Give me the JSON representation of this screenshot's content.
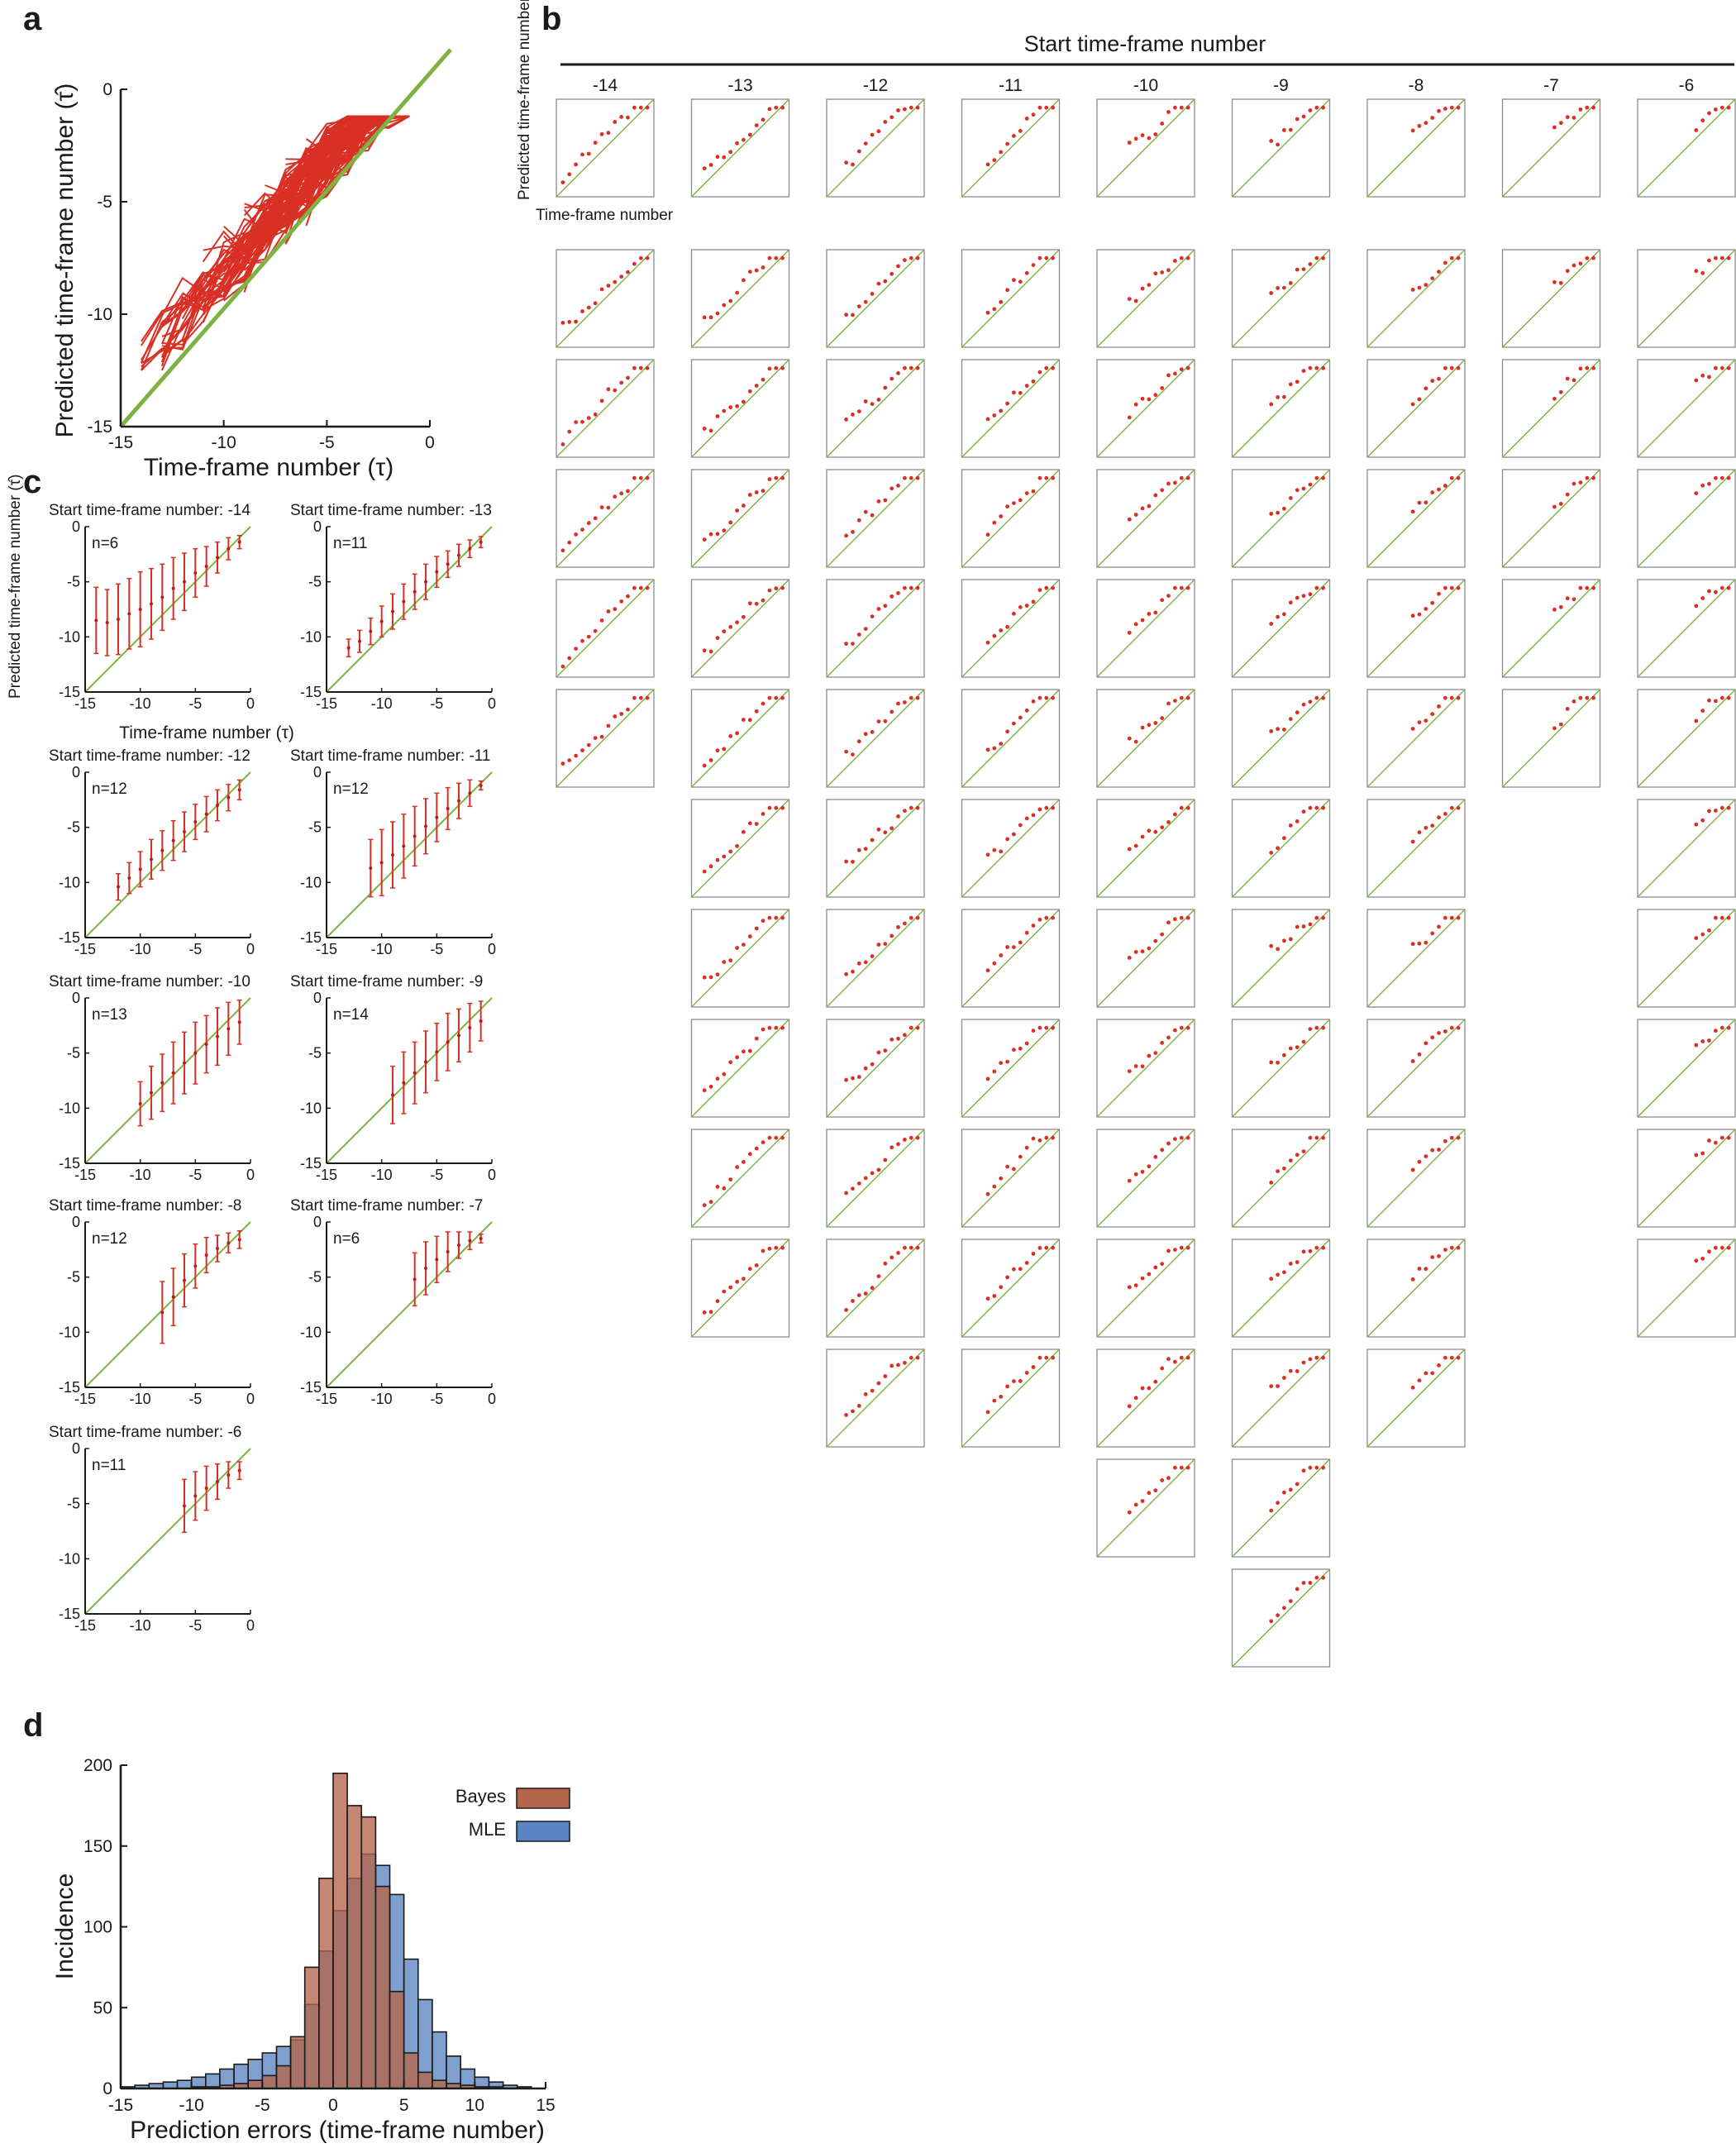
{
  "panel_labels": {
    "a": "a",
    "b": "b",
    "c": "c",
    "d": "d"
  },
  "chart_data": [
    {
      "panel": "a",
      "type": "line",
      "xlabel": "Time-frame number (τ)",
      "ylabel": "Predicted time-frame number (τ̂)",
      "xlim": [
        -15,
        0
      ],
      "ylim": [
        -15,
        0
      ],
      "xticks": [
        "-15",
        "-10",
        "-5",
        "0"
      ],
      "yticks": [
        "-15",
        "-10",
        "-5",
        "0"
      ],
      "identity_line": true,
      "trajectory_count": 100,
      "colors": {
        "trajectories": "#d93025",
        "identity": "#7cb342"
      }
    },
    {
      "panel": "b",
      "type": "scatter",
      "title": "Start time-frame number",
      "columns": [
        "-14",
        "-13",
        "-12",
        "-11",
        "-10",
        "-9",
        "-8",
        "-7",
        "-6"
      ],
      "rows_per_column": [
        6,
        11,
        12,
        12,
        13,
        14,
        12,
        6,
        11
      ],
      "ylabel": "Predicted time-frame number",
      "xlabel": "Time-frame number",
      "xlim": [
        -15,
        0
      ],
      "ylim": [
        -15,
        0
      ],
      "identity_line": true,
      "colors": {
        "points": "#d93025",
        "identity": "#7cb342",
        "frame": "#8c8c8c"
      }
    },
    {
      "panel": "c",
      "type": "scatter",
      "title_prefix": "Start time-frame number: ",
      "ylabel": "Predicted time-frame number (τ̂)",
      "xlabel": "Time-frame number (τ)",
      "xlim": [
        -15,
        0
      ],
      "ylim": [
        -15,
        0
      ],
      "xticks": [
        "-15",
        "-10",
        "-5",
        "0"
      ],
      "yticks": [
        "-15",
        "-10",
        "-5",
        "0"
      ],
      "subplots": [
        {
          "start": "-14",
          "n_label": "n=6",
          "x": [
            -14,
            -13,
            -12,
            -11,
            -10,
            -9,
            -8,
            -7,
            -6,
            -5,
            -4,
            -3,
            -2,
            -1
          ],
          "mean": [
            -8.5,
            -8.7,
            -8.4,
            -7.9,
            -7.5,
            -7.0,
            -6.4,
            -5.6,
            -5.0,
            -4.2,
            -3.6,
            -2.8,
            -2.0,
            -1.4
          ],
          "sd": [
            3.0,
            3.0,
            3.2,
            3.2,
            3.4,
            3.2,
            3.0,
            2.8,
            2.6,
            2.2,
            1.8,
            1.4,
            1.0,
            0.6
          ]
        },
        {
          "start": "-13",
          "n_label": "n=11",
          "x": [
            -13,
            -12,
            -11,
            -10,
            -9,
            -8,
            -7,
            -6,
            -5,
            -4,
            -3,
            -2,
            -1
          ],
          "mean": [
            -11.0,
            -10.4,
            -9.5,
            -8.6,
            -7.7,
            -6.8,
            -5.9,
            -5.0,
            -4.1,
            -3.4,
            -2.6,
            -2.0,
            -1.4
          ],
          "sd": [
            0.8,
            1.0,
            1.2,
            1.4,
            1.6,
            1.6,
            1.6,
            1.6,
            1.4,
            1.2,
            1.0,
            0.8,
            0.5
          ]
        },
        {
          "start": "-12",
          "n_label": "n=12",
          "x": [
            -12,
            -11,
            -10,
            -9,
            -8,
            -7,
            -6,
            -5,
            -4,
            -3,
            -2,
            -1
          ],
          "mean": [
            -10.4,
            -9.6,
            -8.8,
            -7.9,
            -7.1,
            -6.2,
            -5.4,
            -4.5,
            -3.8,
            -3.0,
            -2.3,
            -1.6
          ],
          "sd": [
            1.2,
            1.4,
            1.6,
            1.8,
            1.8,
            1.8,
            1.8,
            1.6,
            1.6,
            1.4,
            1.2,
            0.9
          ]
        },
        {
          "start": "-11",
          "n_label": "n=12",
          "x": [
            -11,
            -10,
            -9,
            -8,
            -7,
            -6,
            -5,
            -4,
            -3,
            -2,
            -1
          ],
          "mean": [
            -8.7,
            -8.2,
            -7.5,
            -6.7,
            -5.8,
            -4.9,
            -4.1,
            -3.3,
            -2.6,
            -1.9,
            -1.2
          ],
          "sd": [
            2.6,
            3.0,
            3.0,
            2.9,
            2.7,
            2.5,
            2.2,
            1.9,
            1.6,
            1.2,
            0.4
          ]
        },
        {
          "start": "-10",
          "n_label": "n=13",
          "x": [
            -10,
            -9,
            -8,
            -7,
            -6,
            -5,
            -4,
            -3,
            -2,
            -1
          ],
          "mean": [
            -9.6,
            -8.6,
            -7.7,
            -6.8,
            -5.9,
            -5.0,
            -4.2,
            -3.5,
            -2.8,
            -2.2
          ],
          "sd": [
            2.0,
            2.4,
            2.6,
            2.8,
            2.8,
            2.8,
            2.6,
            2.6,
            2.4,
            2.0
          ]
        },
        {
          "start": "-9",
          "n_label": "n=14",
          "x": [
            -9,
            -8,
            -7,
            -6,
            -5,
            -4,
            -3,
            -2,
            -1
          ],
          "mean": [
            -8.8,
            -7.7,
            -6.8,
            -5.8,
            -4.9,
            -4.0,
            -3.4,
            -2.7,
            -2.1
          ],
          "sd": [
            2.6,
            2.8,
            2.8,
            2.8,
            2.6,
            2.6,
            2.4,
            2.2,
            1.8
          ]
        },
        {
          "start": "-8",
          "n_label": "n=12",
          "x": [
            -8,
            -7,
            -6,
            -5,
            -4,
            -3,
            -2,
            -1
          ],
          "mean": [
            -8.2,
            -6.8,
            -5.3,
            -4.0,
            -3.0,
            -2.4,
            -1.9,
            -1.6
          ],
          "sd": [
            2.8,
            2.6,
            2.4,
            2.0,
            1.6,
            1.2,
            0.9,
            0.8
          ]
        },
        {
          "start": "-7",
          "n_label": "n=6",
          "x": [
            -7,
            -6,
            -5,
            -4,
            -3,
            -2,
            -1
          ],
          "mean": [
            -5.2,
            -4.2,
            -3.4,
            -2.7,
            -2.1,
            -1.7,
            -1.5
          ],
          "sd": [
            2.4,
            2.4,
            2.1,
            1.8,
            1.2,
            0.8,
            0.4
          ]
        },
        {
          "start": "-6",
          "n_label": "n=11",
          "x": [
            -6,
            -5,
            -4,
            -3,
            -2,
            -1
          ],
          "mean": [
            -5.2,
            -4.3,
            -3.6,
            -3.0,
            -2.4,
            -2.0
          ],
          "sd": [
            2.4,
            2.2,
            2.0,
            1.6,
            1.2,
            0.8
          ]
        }
      ],
      "colors": {
        "errorbars": "#d93025",
        "identity": "#7cb342"
      }
    },
    {
      "panel": "d",
      "type": "bar",
      "xlabel": "Prediction errors (time-frame number)",
      "ylabel": "Incidence",
      "xlim": [
        -15,
        15
      ],
      "ylim": [
        0,
        200
      ],
      "xticks": [
        "-15",
        "-10",
        "-5",
        "0",
        "5",
        "10",
        "15"
      ],
      "yticks": [
        "0",
        "50",
        "100",
        "150",
        "200"
      ],
      "bin_width": 1,
      "bin_starts": [
        -15,
        -14,
        -13,
        -12,
        -11,
        -10,
        -9,
        -8,
        -7,
        -6,
        -5,
        -4,
        -3,
        -2,
        -1,
        0,
        1,
        2,
        3,
        4,
        5,
        6,
        7,
        8,
        9,
        10,
        11,
        12,
        13,
        14
      ],
      "series": [
        {
          "name": "Bayes",
          "color": "#b5654c",
          "values": [
            0,
            0,
            0,
            0,
            0,
            1,
            1,
            2,
            3,
            5,
            8,
            14,
            32,
            75,
            130,
            195,
            175,
            168,
            125,
            60,
            22,
            10,
            5,
            3,
            2,
            1,
            1,
            0,
            0,
            0
          ]
        },
        {
          "name": "MLE",
          "color": "#5b85c2",
          "values": [
            1,
            2,
            3,
            4,
            5,
            7,
            9,
            12,
            15,
            18,
            22,
            26,
            30,
            52,
            85,
            110,
            130,
            145,
            138,
            120,
            80,
            55,
            35,
            20,
            12,
            7,
            4,
            2,
            1,
            0
          ]
        }
      ],
      "legend_position": "top-right"
    }
  ]
}
